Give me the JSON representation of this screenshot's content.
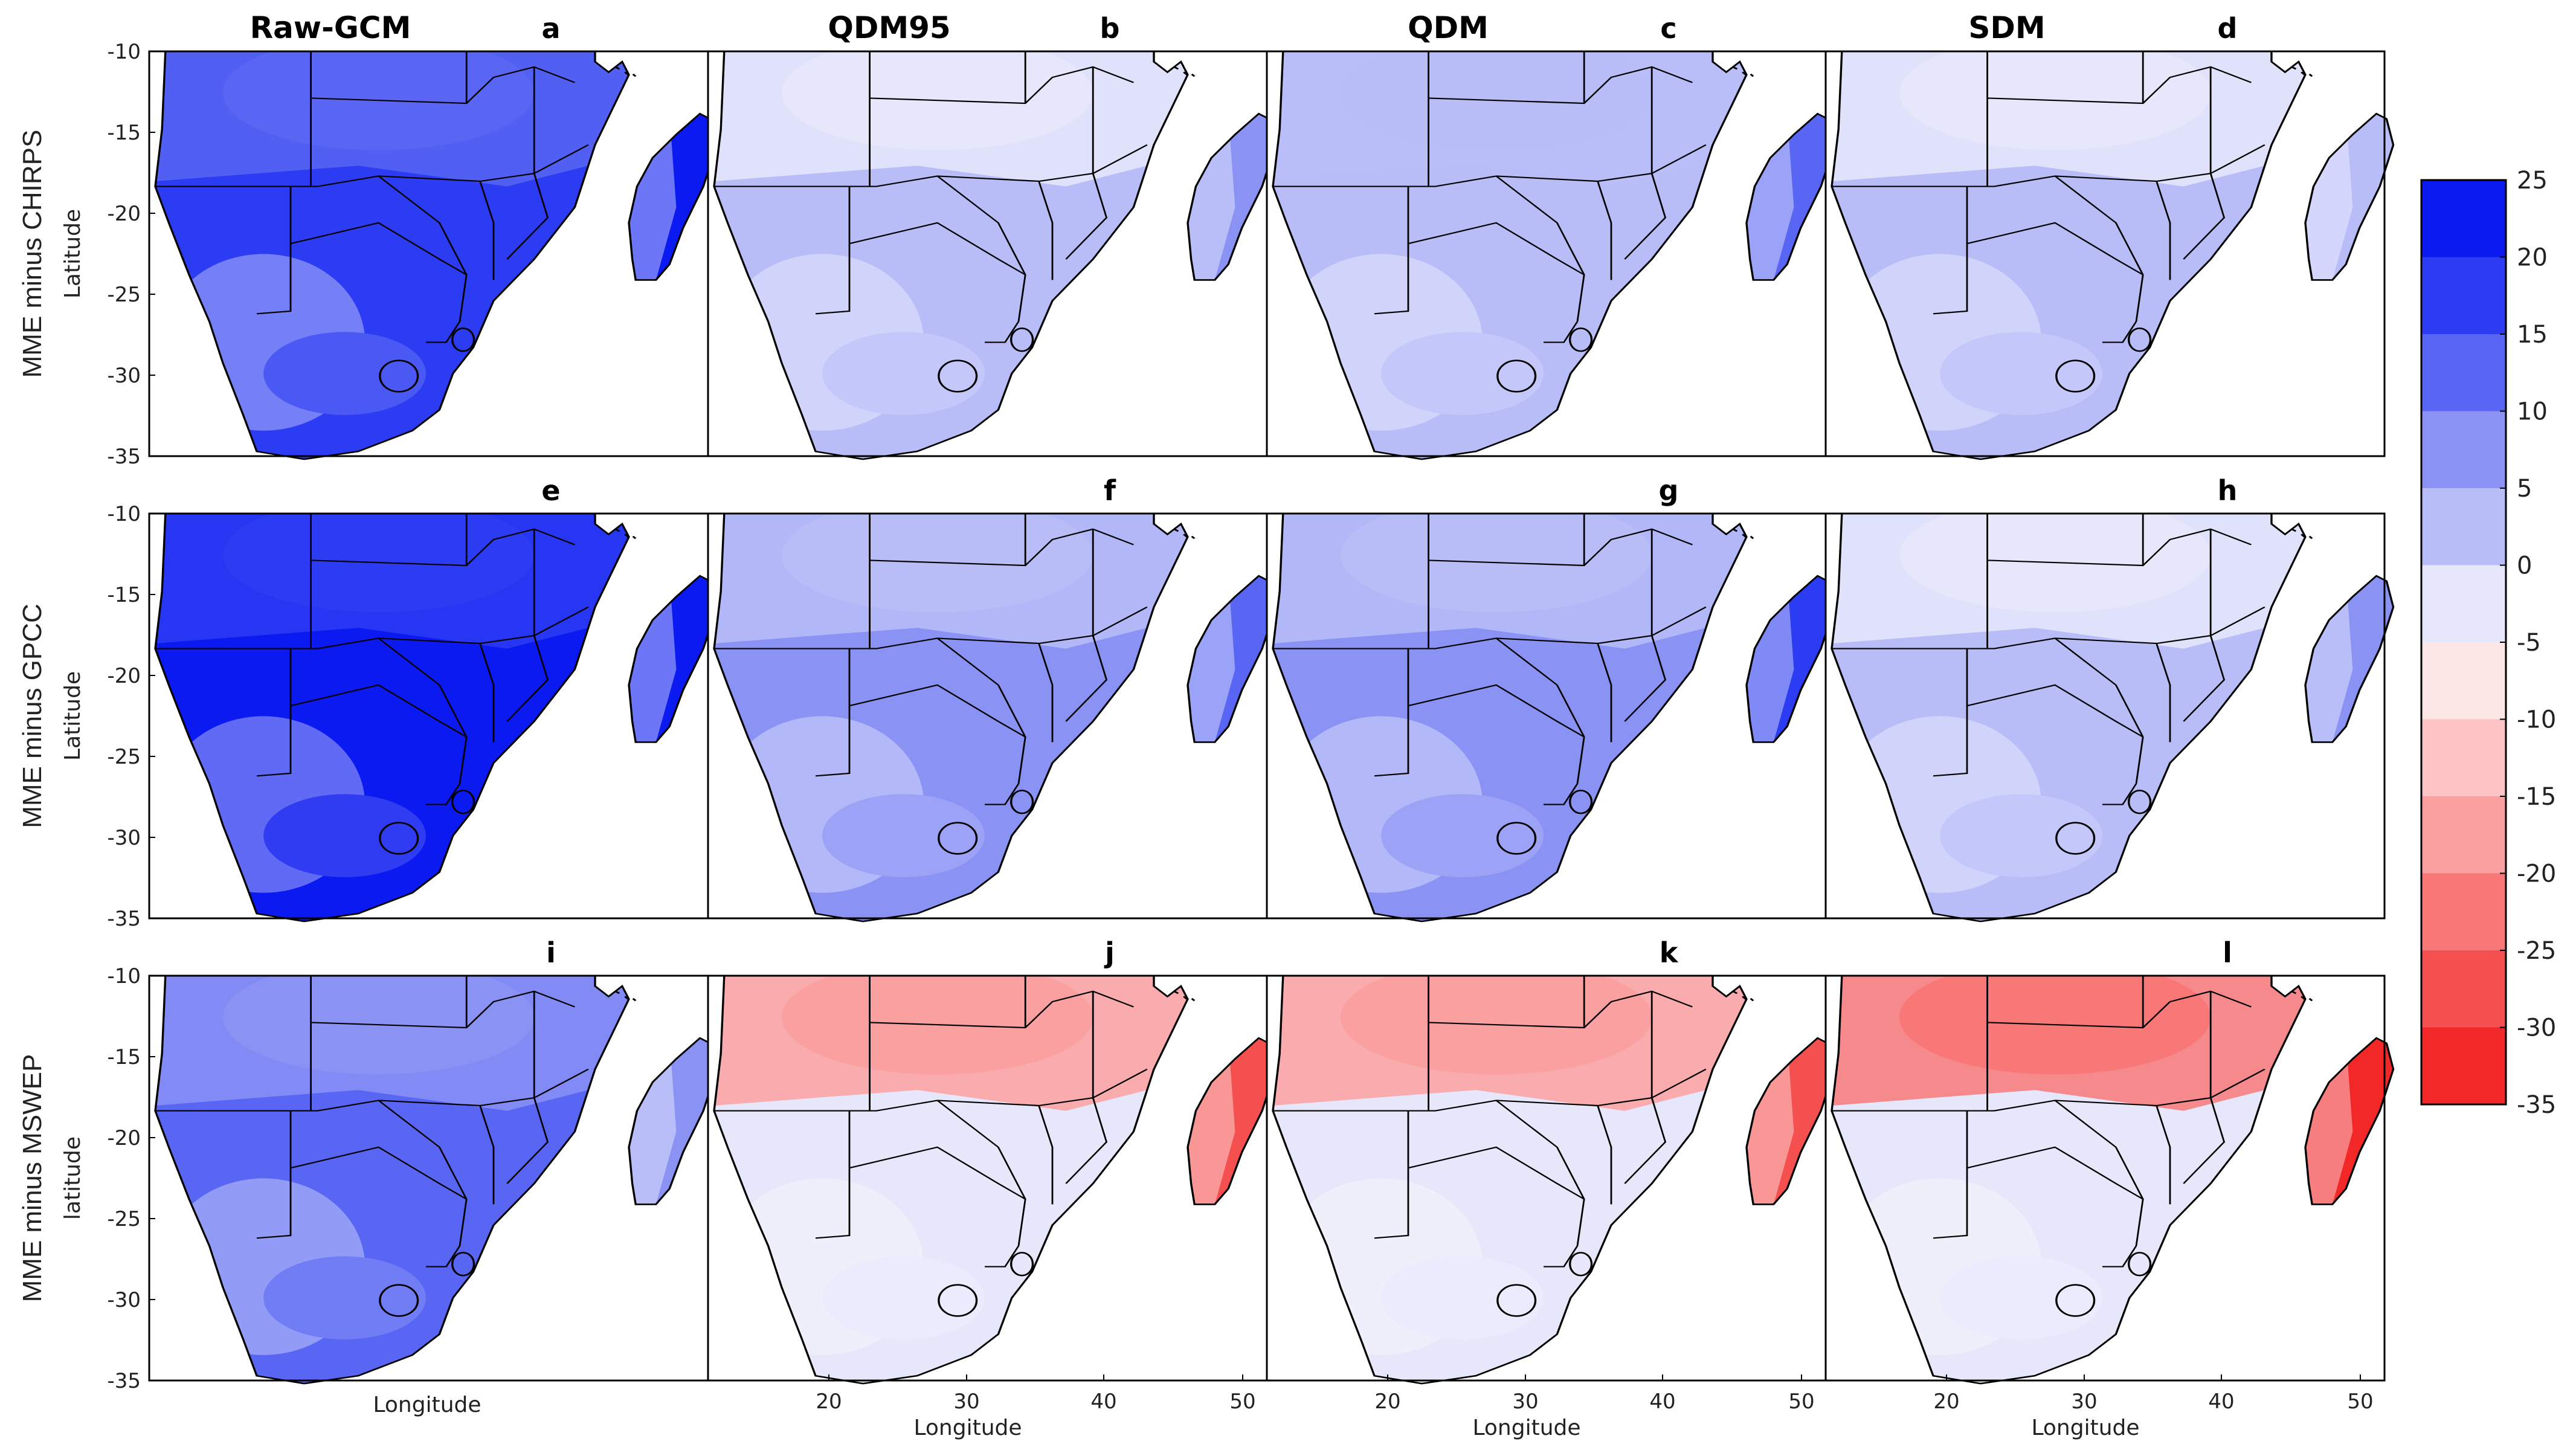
{
  "chart_data": {
    "type": "heatmap",
    "description_keys": "Map panels of precipitation bias over southern Africa",
    "columns": [
      "Raw-GCM",
      "QDM95",
      "QDM",
      "SDM"
    ],
    "rows": [
      {
        "label": "MME minus CHIRPS",
        "ylabel": "Latitude",
        "letters": [
          "a",
          "b",
          "c",
          "d"
        ],
        "bias_levels": [
          [
            15,
            20,
            25
          ],
          [
            0,
            5,
            10
          ],
          [
            5,
            5,
            15
          ],
          [
            0,
            5,
            5
          ]
        ]
      },
      {
        "label": "MME minus GPCC",
        "ylabel": "Latitude",
        "letters": [
          "e",
          "f",
          "g",
          "h"
        ],
        "bias_levels": [
          [
            20,
            25,
            25
          ],
          [
            5,
            10,
            15
          ],
          [
            5,
            10,
            20
          ],
          [
            0,
            5,
            10
          ]
        ]
      },
      {
        "label": "MME minus MSWEP",
        "ylabel": "latitude",
        "letters": [
          "i",
          "j",
          "k",
          "l"
        ],
        "bias_levels": [
          [
            10,
            15,
            10
          ],
          [
            -15,
            0,
            -25
          ],
          [
            -15,
            0,
            -25
          ],
          [
            -20,
            0,
            -30
          ]
        ]
      }
    ],
    "y_ticks": [
      "-10",
      "-15",
      "-20",
      "-25",
      "-30",
      "-35"
    ],
    "x_ticks": [
      "20",
      "30",
      "40",
      "50"
    ],
    "xlabel": "Longitude",
    "colorbar": {
      "ticks": [
        "25",
        "20",
        "15",
        "10",
        "5",
        "0",
        "-5",
        "-10",
        "-15",
        "-20",
        "-25",
        "-30",
        "-35"
      ],
      "colors": [
        "#0a1af0",
        "#2b3cf2",
        "#5866f3",
        "#8a92f4",
        "#b8bdf8",
        "#e6e7fb",
        "#fde6e6",
        "#fcc4c4",
        "#fba0a0",
        "#f87878",
        "#f55050",
        "#f22828"
      ]
    }
  }
}
